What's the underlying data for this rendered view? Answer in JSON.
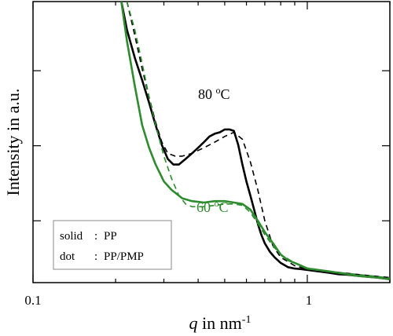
{
  "chart_data": {
    "type": "line",
    "xlabel": {
      "italic": "q",
      "rest": " in nm",
      "sup": "-1"
    },
    "ylabel": "Intensity in a.u.",
    "xscale": "log",
    "xlim": [
      0.1,
      2.0
    ],
    "ylim": [
      0,
      1
    ],
    "x_ticks": [
      {
        "value": 0.1,
        "label": "0.1"
      },
      {
        "value": 1,
        "label": "1"
      }
    ],
    "y_ticks_unlabeled": [
      0.22,
      0.487,
      0.754
    ],
    "grid": false,
    "legend": {
      "position": "bottom-left",
      "lines": [
        {
          "key": "solid",
          "sep": ":",
          "value": "PP"
        },
        {
          "key": "dot",
          "sep": ":",
          "value": "PP/PMP"
        }
      ]
    },
    "annotations": [
      {
        "text": "80 ",
        "sup": "o",
        "unit": "C",
        "color": "#000000"
      },
      {
        "text": "60 ",
        "sup": "o",
        "unit": "C",
        "color": "#2e8b2e"
      }
    ],
    "series": [
      {
        "color": "#000000",
        "dash": false,
        "x": [
          0.21,
          0.22,
          0.235,
          0.25,
          0.265,
          0.28,
          0.295,
          0.31,
          0.325,
          0.34,
          0.36,
          0.38,
          0.4,
          0.42,
          0.44,
          0.46,
          0.48,
          0.5,
          0.52,
          0.54,
          0.56,
          0.58,
          0.6,
          0.62,
          0.64,
          0.66,
          0.68,
          0.7,
          0.73,
          0.76,
          0.8,
          0.85,
          0.9,
          0.95,
          1.0,
          1.1,
          1.2,
          1.3,
          1.4,
          1.5,
          1.6,
          1.7,
          1.8,
          1.9,
          2.0
        ],
        "y": [
          1.0,
          0.9,
          0.8,
          0.72,
          0.64,
          0.56,
          0.49,
          0.44,
          0.42,
          0.42,
          0.44,
          0.46,
          0.48,
          0.5,
          0.52,
          0.53,
          0.535,
          0.545,
          0.545,
          0.54,
          0.49,
          0.42,
          0.36,
          0.31,
          0.26,
          0.21,
          0.17,
          0.14,
          0.11,
          0.09,
          0.07,
          0.055,
          0.05,
          0.048,
          0.045,
          0.04,
          0.035,
          0.03,
          0.028,
          0.025,
          0.022,
          0.02,
          0.018,
          0.015,
          0.012
        ]
      },
      {
        "color": "#000000",
        "dash": true,
        "x": [
          0.22,
          0.235,
          0.25,
          0.265,
          0.28,
          0.295,
          0.31,
          0.33,
          0.35,
          0.38,
          0.42,
          0.46,
          0.5,
          0.54,
          0.58,
          0.62,
          0.66,
          0.7,
          0.75,
          0.8,
          0.9,
          1.0,
          1.2,
          1.5,
          1.8,
          2.0
        ],
        "y": [
          1.0,
          0.88,
          0.76,
          0.66,
          0.57,
          0.5,
          0.46,
          0.45,
          0.45,
          0.46,
          0.48,
          0.5,
          0.52,
          0.535,
          0.51,
          0.43,
          0.33,
          0.22,
          0.13,
          0.09,
          0.06,
          0.048,
          0.04,
          0.03,
          0.022,
          0.018
        ]
      },
      {
        "color": "#2e8b2e",
        "dash": false,
        "x": [
          0.21,
          0.22,
          0.235,
          0.25,
          0.265,
          0.28,
          0.3,
          0.32,
          0.35,
          0.38,
          0.42,
          0.46,
          0.5,
          0.54,
          0.58,
          0.62,
          0.66,
          0.7,
          0.75,
          0.8,
          0.85,
          0.9,
          0.95,
          1.0,
          1.1,
          1.2,
          1.3,
          1.4,
          1.5,
          1.6,
          1.7,
          1.8,
          1.9,
          2.0
        ],
        "y": [
          1.0,
          0.86,
          0.7,
          0.56,
          0.48,
          0.42,
          0.36,
          0.33,
          0.3,
          0.29,
          0.285,
          0.29,
          0.29,
          0.285,
          0.28,
          0.26,
          0.22,
          0.18,
          0.14,
          0.1,
          0.08,
          0.07,
          0.06,
          0.05,
          0.045,
          0.04,
          0.035,
          0.03,
          0.025,
          0.022,
          0.02,
          0.018,
          0.015,
          0.012
        ]
      },
      {
        "color": "#2e8b2e",
        "dash": true,
        "x": [
          0.22,
          0.235,
          0.25,
          0.265,
          0.28,
          0.3,
          0.32,
          0.34,
          0.36,
          0.38,
          0.42,
          0.46,
          0.5,
          0.54,
          0.58,
          0.62,
          0.66,
          0.7,
          0.75,
          0.8,
          0.9,
          1.0,
          1.2,
          1.5,
          1.8,
          2.0
        ],
        "y": [
          1.0,
          0.9,
          0.78,
          0.66,
          0.56,
          0.45,
          0.37,
          0.31,
          0.28,
          0.27,
          0.27,
          0.275,
          0.28,
          0.28,
          0.275,
          0.25,
          0.21,
          0.17,
          0.13,
          0.1,
          0.07,
          0.052,
          0.04,
          0.03,
          0.022,
          0.016
        ]
      }
    ]
  }
}
